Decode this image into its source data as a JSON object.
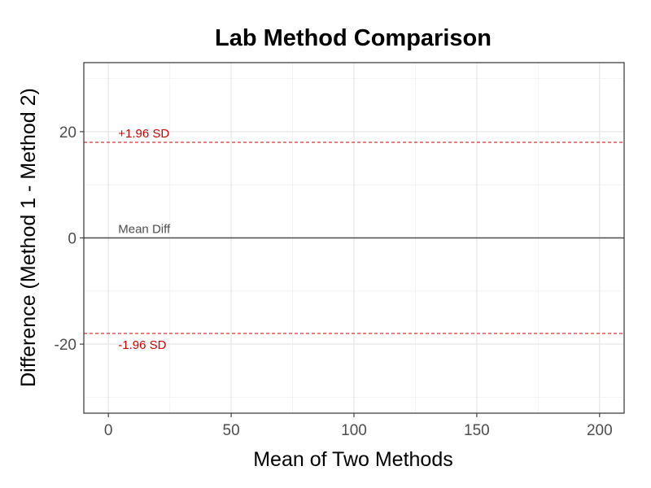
{
  "chart_data": {
    "type": "line",
    "title": "Lab Method Comparison",
    "xlabel": "Mean of Two Methods",
    "ylabel": "Difference (Method 1 - Method 2)",
    "xlim": [
      -10,
      210
    ],
    "ylim": [
      -33,
      33
    ],
    "x_ticks": [
      0,
      50,
      100,
      150,
      200
    ],
    "y_ticks": [
      -20,
      0,
      20
    ],
    "x_minor": [
      25,
      75,
      125,
      175
    ],
    "y_minor": [
      -30,
      -10,
      10,
      30
    ],
    "grid": true,
    "points": [],
    "reference_lines": [
      {
        "name": "upper_loa",
        "label": "+1.96 SD",
        "y": 18,
        "color": "#cc0000",
        "style": "dashed",
        "label_position": "above"
      },
      {
        "name": "mean_diff",
        "label": "Mean Diff",
        "y": 0,
        "color": "#4d4d4d",
        "style": "solid",
        "label_position": "above"
      },
      {
        "name": "lower_loa",
        "label": "-1.96 SD",
        "y": -18,
        "color": "#cc0000",
        "style": "dashed",
        "label_position": "below"
      }
    ],
    "label_x": 4
  }
}
